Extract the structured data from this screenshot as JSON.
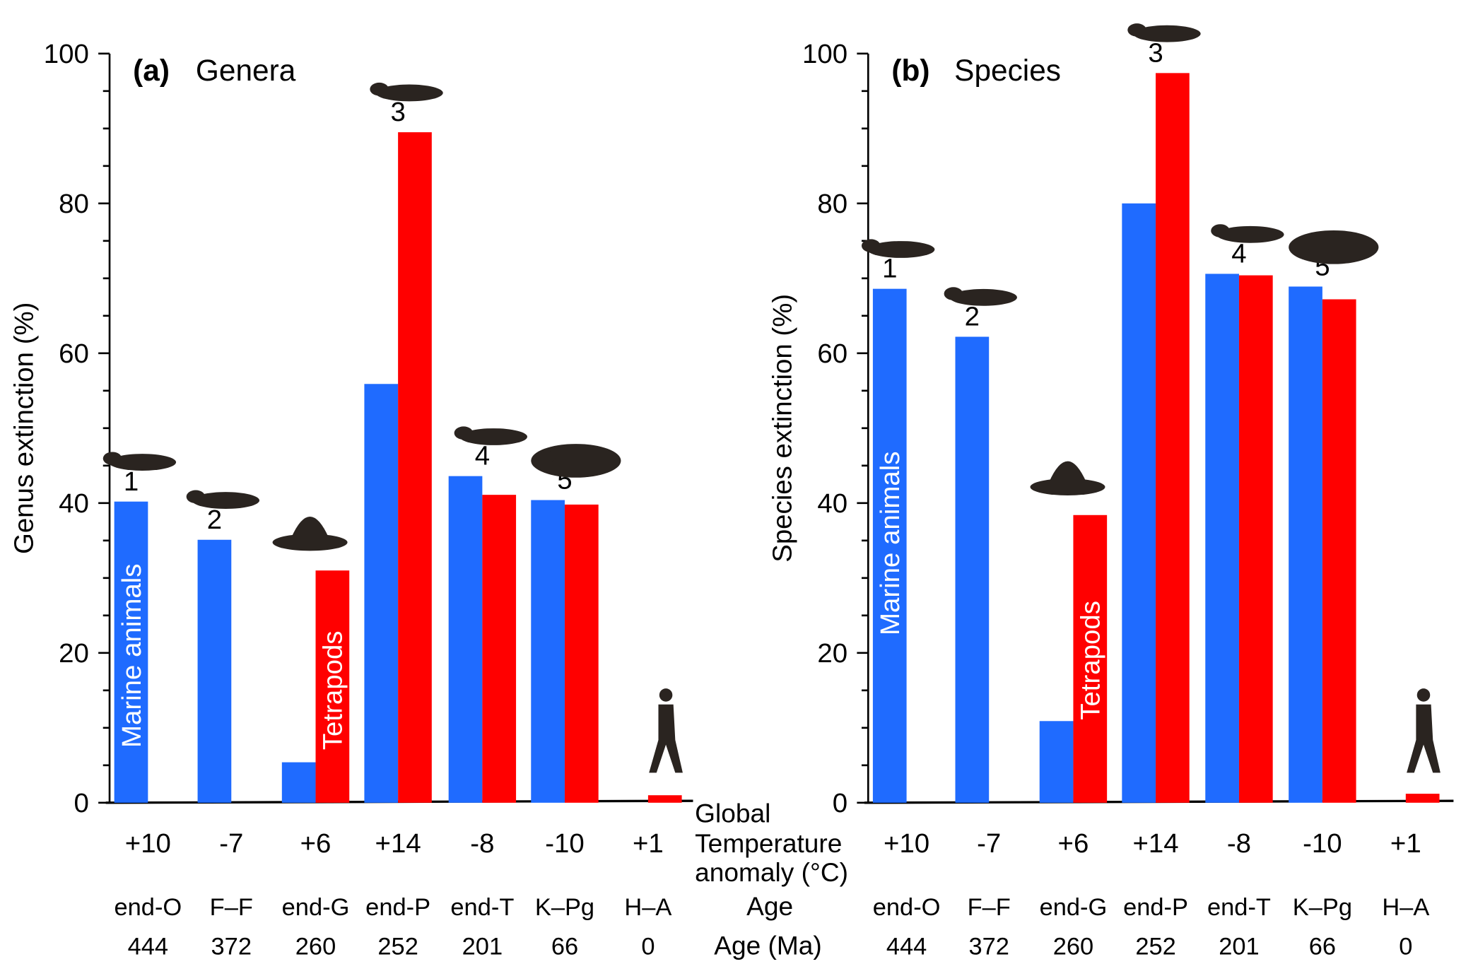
{
  "colors": {
    "marine": "#1f6bff",
    "tetrapods": "#ff0000",
    "axis": "#000000",
    "silhouette": "#2a2420"
  },
  "row_labels": {
    "temp_line1": "Global",
    "temp_line2": "Temperature",
    "temp_line3": "anomaly (°C)",
    "age": "Age",
    "age_ma": "Age (Ma)"
  },
  "chart_data": [
    {
      "type": "bar",
      "panel": "(a)",
      "title": "Genera",
      "ylabel": "Genus extinction (%)",
      "ylim": [
        0,
        100
      ],
      "yticks": [
        "0",
        "20",
        "40",
        "60",
        "80",
        "100"
      ],
      "categories": [
        "end-O",
        "F–F",
        "end-G",
        "end-P",
        "end-T",
        "K–Pg",
        "H–A"
      ],
      "ages_ma": [
        "444",
        "372",
        "260",
        "252",
        "201",
        "66",
        "0"
      ],
      "temperature_anomaly": [
        "+10",
        "-7",
        "+6",
        "+14",
        "-8",
        "-10",
        "+1"
      ],
      "event_numbers": [
        "1",
        "2",
        "",
        "3",
        "4",
        "5",
        ""
      ],
      "series": [
        {
          "name": "Marine animals",
          "values": [
            40.2,
            35.1,
            5.4,
            55.9,
            43.6,
            40.4,
            null
          ]
        },
        {
          "name": "Tetrapods",
          "values": [
            null,
            null,
            31.0,
            89.5,
            41.1,
            39.8,
            1.0
          ]
        }
      ]
    },
    {
      "type": "bar",
      "panel": "(b)",
      "title": "Species",
      "ylabel": "Species extinction (%)",
      "ylim": [
        0,
        100
      ],
      "yticks": [
        "0",
        "20",
        "40",
        "60",
        "80",
        "100"
      ],
      "categories": [
        "end-O",
        "F–F",
        "end-G",
        "end-P",
        "end-T",
        "K–Pg",
        "H–A"
      ],
      "ages_ma": [
        "444",
        "372",
        "260",
        "252",
        "201",
        "66",
        "0"
      ],
      "temperature_anomaly": [
        "+10",
        "-7",
        "+6",
        "+14",
        "-8",
        "-10",
        "+1"
      ],
      "event_numbers": [
        "1",
        "2",
        "",
        "3",
        "4",
        "5",
        ""
      ],
      "series": [
        {
          "name": "Marine animals",
          "values": [
            68.6,
            62.2,
            10.9,
            80.0,
            70.6,
            68.9,
            null
          ]
        },
        {
          "name": "Tetrapods",
          "values": [
            null,
            null,
            38.4,
            97.4,
            70.4,
            67.2,
            1.2
          ]
        }
      ]
    }
  ]
}
